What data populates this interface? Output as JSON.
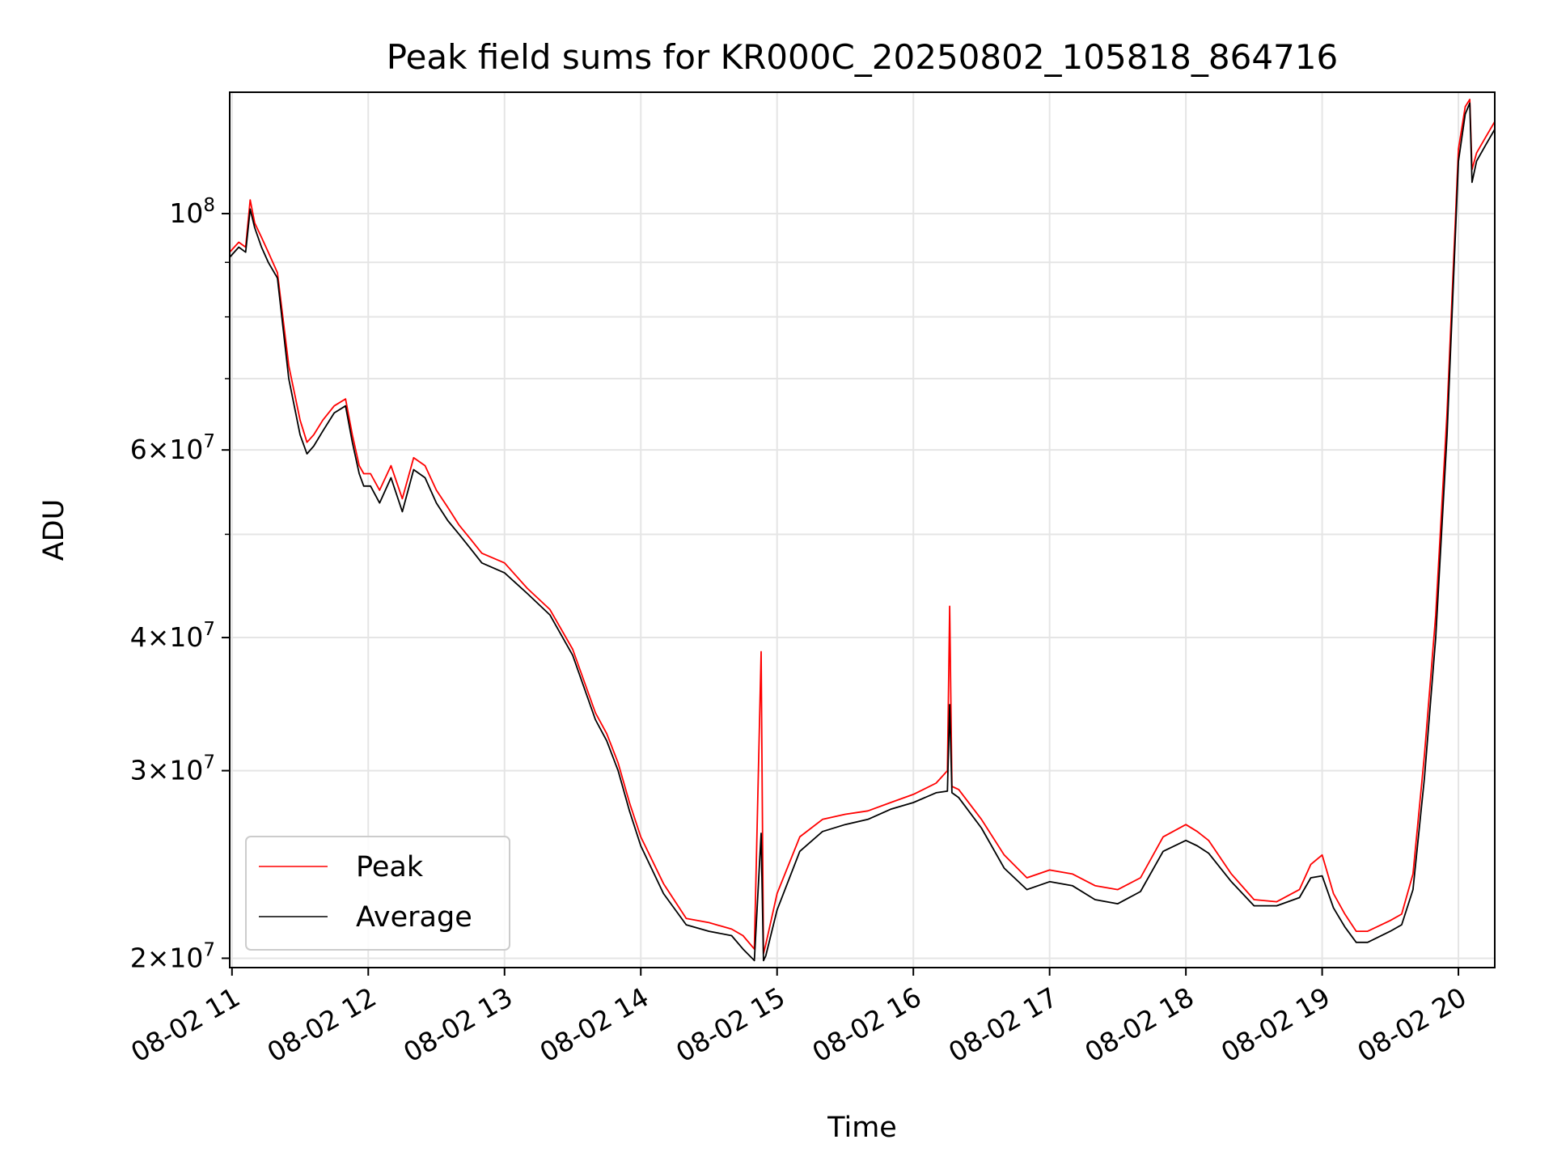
{
  "chart_data": {
    "type": "line",
    "title": "Peak field sums for KR000C_20250802_105818_864716",
    "xlabel": "Time",
    "ylabel": "ADU",
    "yscale": "log",
    "x_tick_labels": [
      "08-02 11",
      "08-02 12",
      "08-02 13",
      "08-02 14",
      "08-02 15",
      "08-02 16",
      "08-02 17",
      "08-02 18",
      "08-02 19",
      "08-02 20"
    ],
    "x_ticks": [
      "11:00",
      "12:00",
      "13:00",
      "14:00",
      "15:00",
      "16:00",
      "17:00",
      "18:00",
      "19:00",
      "20:00"
    ],
    "xlim": [
      "10:59",
      "20:16"
    ],
    "y_tick_labels": [
      {
        "value": 100000000,
        "base": "10",
        "exp": "8",
        "mult": ""
      },
      {
        "value": 60000000,
        "base": "10",
        "exp": "7",
        "mult": "6"
      },
      {
        "value": 40000000,
        "base": "10",
        "exp": "7",
        "mult": "4"
      },
      {
        "value": 30000000,
        "base": "10",
        "exp": "7",
        "mult": "3"
      },
      {
        "value": 20000000,
        "base": "10",
        "exp": "7",
        "mult": "2"
      }
    ],
    "y_minor_ticks": [
      90000000,
      80000000,
      70000000,
      50000000
    ],
    "ylim": [
      19600000,
      130000000
    ],
    "grid": true,
    "legend_position": "lower-left",
    "series": [
      {
        "name": "Peak",
        "color": "#ff0000",
        "x": [
          "10:59",
          "11:03",
          "11:06",
          "11:08",
          "11:10",
          "11:13",
          "11:16",
          "11:20",
          "11:25",
          "11:30",
          "11:33",
          "11:36",
          "11:40",
          "11:45",
          "11:50",
          "11:53",
          "11:56",
          "11:58",
          "12:01",
          "12:05",
          "12:10",
          "12:15",
          "12:20",
          "12:25",
          "12:30",
          "12:35",
          "12:40",
          "12:45",
          "12:50",
          "13:00",
          "13:10",
          "13:20",
          "13:30",
          "13:40",
          "13:45",
          "13:50",
          "13:55",
          "14:00",
          "14:10",
          "14:20",
          "14:30",
          "14:40",
          "14:45",
          "14:50",
          "14:53",
          "14:54",
          "14:55",
          "15:00",
          "15:10",
          "15:20",
          "15:30",
          "15:40",
          "15:50",
          "16:00",
          "16:10",
          "16:15",
          "16:16",
          "16:17",
          "16:20",
          "16:30",
          "16:40",
          "16:50",
          "17:00",
          "17:10",
          "17:20",
          "17:30",
          "17:40",
          "17:50",
          "18:00",
          "18:05",
          "18:10",
          "18:20",
          "18:30",
          "18:40",
          "18:50",
          "18:55",
          "19:00",
          "19:05",
          "19:10",
          "19:15",
          "19:20",
          "19:30",
          "19:35",
          "19:40",
          "19:45",
          "19:50",
          "19:55",
          "20:00",
          "20:03",
          "20:05",
          "20:06",
          "20:08",
          "20:12",
          "20:16"
        ],
        "y": [
          92000000,
          94000000,
          93000000,
          103000000,
          98000000,
          95000000,
          92000000,
          88000000,
          72000000,
          64000000,
          61000000,
          62000000,
          64000000,
          66000000,
          67000000,
          62000000,
          58000000,
          57000000,
          57000000,
          55000000,
          58000000,
          54000000,
          59000000,
          58000000,
          55000000,
          53000000,
          51000000,
          49500000,
          48000000,
          47000000,
          44500000,
          42500000,
          39000000,
          34000000,
          32500000,
          30500000,
          28000000,
          26000000,
          23500000,
          21800000,
          21600000,
          21300000,
          21000000,
          20400000,
          38800000,
          20200000,
          20600000,
          23000000,
          26000000,
          27000000,
          27300000,
          27500000,
          28000000,
          28500000,
          29200000,
          30000000,
          42800000,
          29000000,
          28800000,
          27000000,
          25000000,
          23800000,
          24200000,
          24000000,
          23400000,
          23200000,
          23800000,
          26000000,
          26700000,
          26300000,
          25800000,
          24000000,
          22700000,
          22600000,
          23200000,
          24500000,
          25000000,
          23000000,
          22000000,
          21200000,
          21200000,
          21700000,
          22000000,
          24000000,
          31000000,
          42000000,
          65000000,
          115000000,
          126000000,
          128000000,
          110000000,
          114000000,
          118000000,
          122000000
        ]
      },
      {
        "name": "Average",
        "color": "#000000",
        "x": [
          "10:59",
          "11:03",
          "11:06",
          "11:08",
          "11:10",
          "11:13",
          "11:16",
          "11:20",
          "11:25",
          "11:30",
          "11:33",
          "11:36",
          "11:40",
          "11:45",
          "11:50",
          "11:53",
          "11:56",
          "11:58",
          "12:01",
          "12:05",
          "12:10",
          "12:15",
          "12:20",
          "12:25",
          "12:30",
          "12:35",
          "12:40",
          "12:45",
          "12:50",
          "13:00",
          "13:10",
          "13:20",
          "13:30",
          "13:40",
          "13:45",
          "13:50",
          "13:55",
          "14:00",
          "14:10",
          "14:20",
          "14:30",
          "14:40",
          "14:45",
          "14:50",
          "14:53",
          "14:54",
          "14:55",
          "15:00",
          "15:10",
          "15:20",
          "15:30",
          "15:40",
          "15:50",
          "16:00",
          "16:10",
          "16:15",
          "16:16",
          "16:17",
          "16:20",
          "16:30",
          "16:40",
          "16:50",
          "17:00",
          "17:10",
          "17:20",
          "17:30",
          "17:40",
          "17:50",
          "18:00",
          "18:05",
          "18:10",
          "18:20",
          "18:30",
          "18:40",
          "18:50",
          "18:55",
          "19:00",
          "19:05",
          "19:10",
          "19:15",
          "19:20",
          "19:30",
          "19:35",
          "19:40",
          "19:45",
          "19:50",
          "19:55",
          "20:00",
          "20:03",
          "20:05",
          "20:06",
          "20:08",
          "20:12",
          "20:16"
        ],
        "y": [
          91000000,
          93000000,
          92000000,
          101000000,
          97000000,
          93000000,
          90000000,
          87000000,
          70000000,
          62000000,
          59500000,
          60500000,
          62500000,
          65000000,
          66000000,
          61000000,
          57000000,
          55500000,
          55500000,
          53500000,
          56500000,
          52500000,
          57500000,
          56500000,
          53500000,
          51500000,
          50000000,
          48500000,
          47000000,
          46000000,
          44000000,
          42000000,
          38500000,
          33500000,
          32000000,
          30000000,
          27500000,
          25500000,
          23000000,
          21500000,
          21200000,
          21000000,
          20400000,
          19900000,
          26200000,
          19900000,
          20100000,
          22200000,
          25200000,
          26300000,
          26700000,
          27000000,
          27600000,
          28000000,
          28600000,
          28700000,
          34600000,
          28600000,
          28300000,
          26500000,
          24300000,
          23200000,
          23600000,
          23400000,
          22700000,
          22500000,
          23100000,
          25200000,
          25800000,
          25500000,
          25100000,
          23600000,
          22400000,
          22400000,
          22800000,
          23800000,
          23900000,
          22300000,
          21400000,
          20700000,
          20700000,
          21200000,
          21500000,
          23200000,
          29500000,
          40000000,
          62000000,
          112000000,
          124000000,
          127000000,
          107000000,
          112000000,
          116000000,
          120000000
        ]
      }
    ]
  }
}
